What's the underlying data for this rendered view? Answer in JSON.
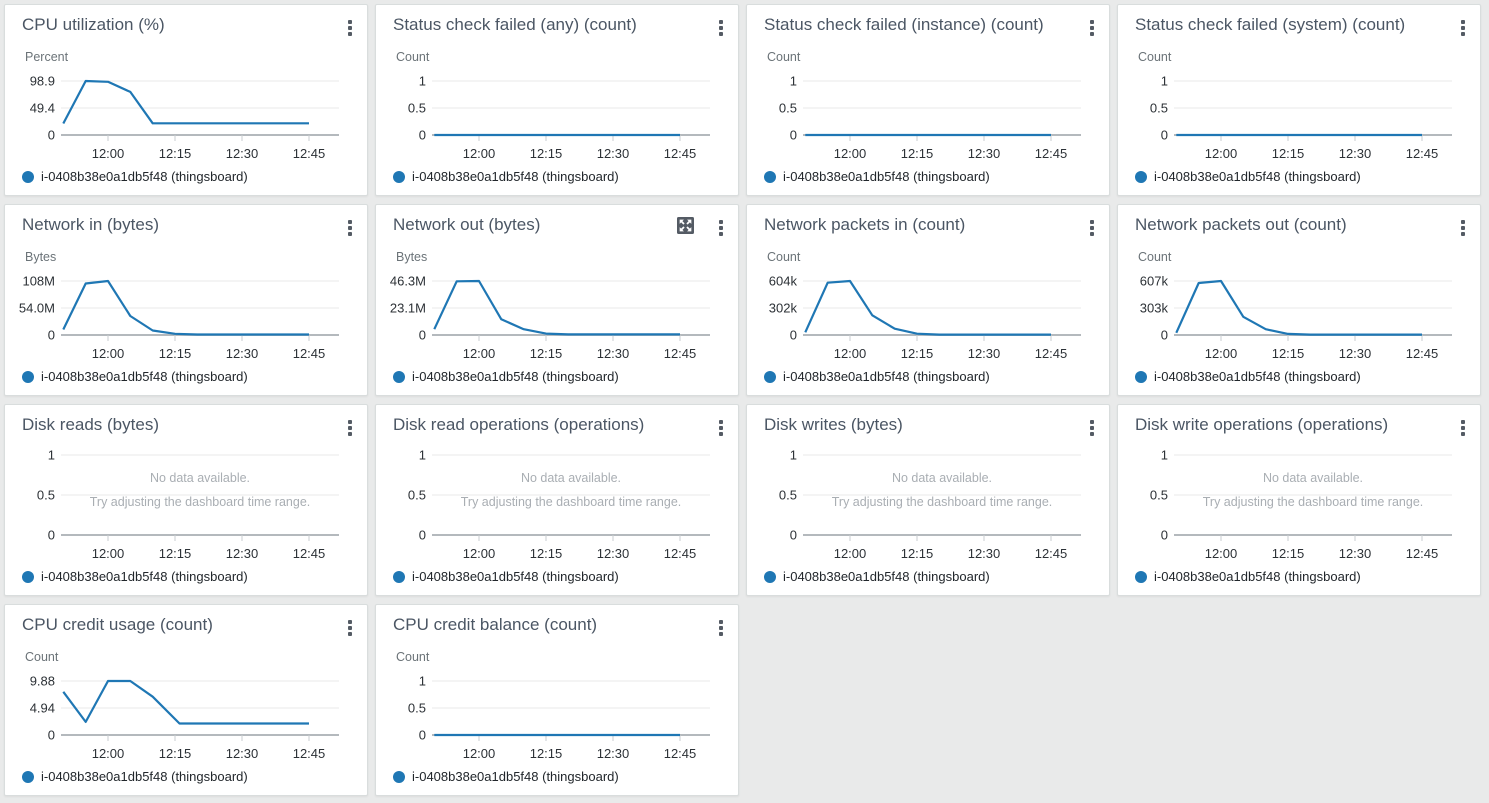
{
  "dashboard": {
    "legend": {
      "label": "i-0408b38e0a1db5f48 (thingsboard)",
      "color": "#1f77b4"
    },
    "x_axis": {
      "ticks": [
        "12:00",
        "12:15",
        "12:30",
        "12:45"
      ],
      "start": "11:50",
      "points_unit": "minutes-after-11:50"
    },
    "no_data_message": {
      "line1": "No data available.",
      "line2": "Try adjusting the dashboard time range."
    },
    "colors": {
      "line": "#1f77b4",
      "axis": "#b4b9bd",
      "grid": "#e8eaea",
      "tick_mark": "#c9cdd0",
      "tick_label": "#2c3136",
      "unit_label": "#6b7378",
      "title": "#4b5664",
      "no_data_text": "#a9aeb3",
      "icon": "#545b64"
    },
    "widgets": [
      {
        "title": "CPU utilization (%)",
        "unit": "Percent",
        "y_ticks": [
          "98.9",
          "49.4",
          "0"
        ],
        "y_max": 98.9,
        "no_data": false,
        "has_expand": false,
        "points": [
          [
            0,
            21
          ],
          [
            5,
            98.9
          ],
          [
            10,
            97.5
          ],
          [
            15,
            79
          ],
          [
            20,
            21.5
          ],
          [
            55,
            21.5
          ]
        ]
      },
      {
        "title": "Status check failed (any) (count)",
        "unit": "Count",
        "y_ticks": [
          "1",
          "0.5",
          "0"
        ],
        "y_max": 1,
        "no_data": false,
        "has_expand": false,
        "points": [
          [
            0,
            0
          ],
          [
            55,
            0
          ]
        ]
      },
      {
        "title": "Status check failed (instance) (count)",
        "unit": "Count",
        "y_ticks": [
          "1",
          "0.5",
          "0"
        ],
        "y_max": 1,
        "no_data": false,
        "has_expand": false,
        "points": [
          [
            0,
            0
          ],
          [
            55,
            0
          ]
        ]
      },
      {
        "title": "Status check failed (system) (count)",
        "unit": "Count",
        "y_ticks": [
          "1",
          "0.5",
          "0"
        ],
        "y_max": 1,
        "no_data": false,
        "has_expand": false,
        "points": [
          [
            0,
            0
          ],
          [
            55,
            0
          ]
        ]
      },
      {
        "title": "Network in (bytes)",
        "unit": "Bytes",
        "y_ticks": [
          "108M",
          "54.0M",
          "0"
        ],
        "y_max": 108,
        "no_data": false,
        "has_expand": false,
        "points": [
          [
            0,
            11
          ],
          [
            5,
            103
          ],
          [
            10,
            108
          ],
          [
            15,
            38
          ],
          [
            20,
            9
          ],
          [
            25,
            2.5
          ],
          [
            30,
            1
          ],
          [
            55,
            1
          ]
        ]
      },
      {
        "title": "Network out (bytes)",
        "unit": "Bytes",
        "y_ticks": [
          "46.3M",
          "23.1M",
          "0"
        ],
        "y_max": 46.3,
        "no_data": false,
        "has_expand": true,
        "points": [
          [
            0,
            5
          ],
          [
            5,
            46
          ],
          [
            10,
            46.3
          ],
          [
            15,
            13.5
          ],
          [
            20,
            5
          ],
          [
            25,
            1.2
          ],
          [
            30,
            0.5
          ],
          [
            55,
            0.5
          ]
        ]
      },
      {
        "title": "Network packets in (count)",
        "unit": "Count",
        "y_ticks": [
          "604k",
          "302k",
          "0"
        ],
        "y_max": 604,
        "no_data": false,
        "has_expand": false,
        "points": [
          [
            0,
            30
          ],
          [
            5,
            585
          ],
          [
            10,
            604
          ],
          [
            15,
            220
          ],
          [
            20,
            70
          ],
          [
            25,
            15
          ],
          [
            30,
            5
          ],
          [
            55,
            5
          ]
        ]
      },
      {
        "title": "Network packets out (count)",
        "unit": "Count",
        "y_ticks": [
          "607k",
          "303k",
          "0"
        ],
        "y_max": 607,
        "no_data": false,
        "has_expand": false,
        "points": [
          [
            0,
            25
          ],
          [
            5,
            585
          ],
          [
            10,
            607
          ],
          [
            15,
            205
          ],
          [
            20,
            65
          ],
          [
            25,
            12
          ],
          [
            30,
            4
          ],
          [
            55,
            4
          ]
        ]
      },
      {
        "title": "Disk reads (bytes)",
        "unit": null,
        "y_ticks": [
          "1",
          "0.5",
          "0"
        ],
        "y_max": 1,
        "no_data": true,
        "has_expand": false,
        "points": []
      },
      {
        "title": "Disk read operations (operations)",
        "unit": null,
        "y_ticks": [
          "1",
          "0.5",
          "0"
        ],
        "y_max": 1,
        "no_data": true,
        "has_expand": false,
        "points": []
      },
      {
        "title": "Disk writes (bytes)",
        "unit": null,
        "y_ticks": [
          "1",
          "0.5",
          "0"
        ],
        "y_max": 1,
        "no_data": true,
        "has_expand": false,
        "points": []
      },
      {
        "title": "Disk write operations (operations)",
        "unit": null,
        "y_ticks": [
          "1",
          "0.5",
          "0"
        ],
        "y_max": 1,
        "no_data": true,
        "has_expand": false,
        "points": []
      },
      {
        "title": "CPU credit usage (count)",
        "unit": "Count",
        "y_ticks": [
          "9.88",
          "4.94",
          "0"
        ],
        "y_max": 9.88,
        "no_data": false,
        "has_expand": false,
        "points": [
          [
            0,
            7.9
          ],
          [
            5,
            2.4
          ],
          [
            10,
            9.88
          ],
          [
            15,
            9.88
          ],
          [
            20,
            7.0
          ],
          [
            26,
            2.1
          ],
          [
            55,
            2.1
          ]
        ]
      },
      {
        "title": "CPU credit balance (count)",
        "unit": "Count",
        "y_ticks": [
          "1",
          "0.5",
          "0"
        ],
        "y_max": 1,
        "no_data": false,
        "has_expand": false,
        "points": [
          [
            0,
            0
          ],
          [
            55,
            0
          ]
        ]
      }
    ]
  }
}
